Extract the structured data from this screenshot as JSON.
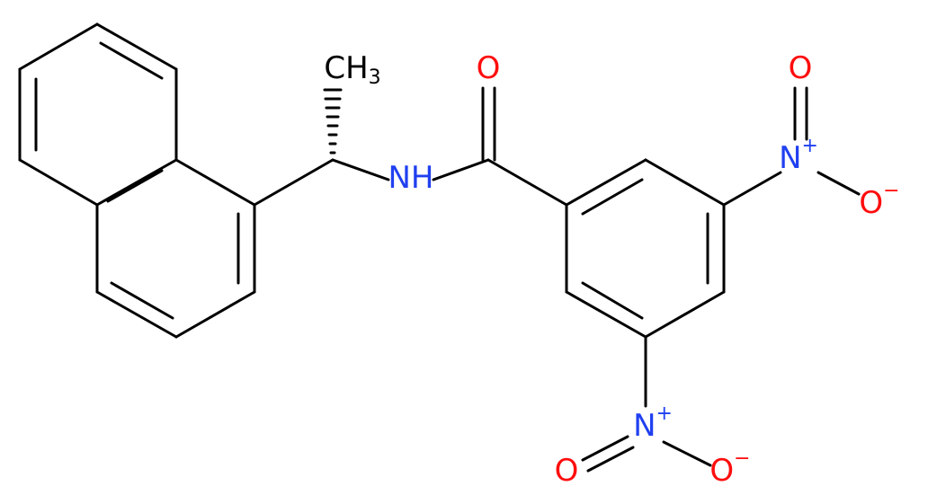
{
  "atoms": [
    {
      "symbol": "CH",
      "subscript": "3"
    },
    {
      "symbol": "NH"
    },
    {
      "symbol": "O"
    },
    {
      "symbol": "N",
      "charge": "+"
    },
    {
      "symbol": "O"
    },
    {
      "symbol": "O",
      "charge": "−"
    },
    {
      "symbol": "N",
      "charge": "+"
    },
    {
      "symbol": "O"
    },
    {
      "symbol": "O",
      "charge": "−"
    }
  ]
}
